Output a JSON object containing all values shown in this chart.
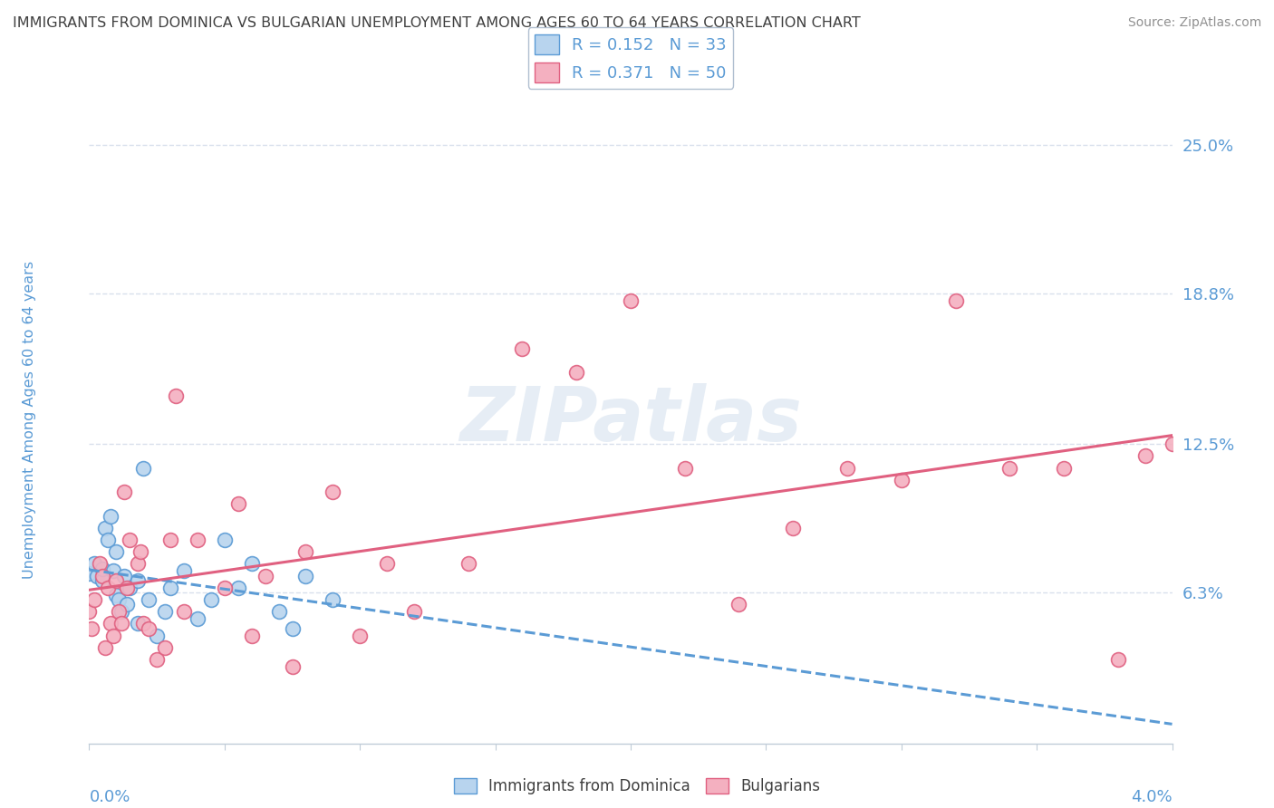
{
  "title": "IMMIGRANTS FROM DOMINICA VS BULGARIAN UNEMPLOYMENT AMONG AGES 60 TO 64 YEARS CORRELATION CHART",
  "source": "Source: ZipAtlas.com",
  "ylabel_axis_label": "Unemployment Among Ages 60 to 64 years",
  "legend_blue_label": "Immigrants from Dominica",
  "legend_pink_label": "Bulgarians",
  "R_blue": 0.152,
  "N_blue": 33,
  "R_pink": 0.371,
  "N_pink": 50,
  "blue_fill": "#b8d4ee",
  "blue_edge": "#5b9bd5",
  "pink_fill": "#f4b0c0",
  "pink_edge": "#e06080",
  "blue_line": "#5b9bd5",
  "pink_line": "#e06080",
  "ylabel_values": [
    6.3,
    12.5,
    18.8,
    25.0
  ],
  "ylabel_labels": [
    "6.3%",
    "12.5%",
    "18.8%",
    "25.0%"
  ],
  "xmin": 0.0,
  "xmax": 4.0,
  "ymin": 0.0,
  "ymax": 27.0,
  "blue_scatter_x": [
    0.0,
    0.02,
    0.03,
    0.05,
    0.05,
    0.06,
    0.07,
    0.08,
    0.09,
    0.1,
    0.1,
    0.11,
    0.12,
    0.13,
    0.14,
    0.15,
    0.18,
    0.18,
    0.2,
    0.22,
    0.25,
    0.28,
    0.3,
    0.35,
    0.4,
    0.45,
    0.5,
    0.55,
    0.6,
    0.7,
    0.75,
    0.8,
    0.9
  ],
  "blue_scatter_y": [
    7.1,
    7.5,
    7.0,
    6.8,
    7.3,
    9.0,
    8.5,
    9.5,
    7.2,
    6.2,
    8.0,
    6.0,
    5.5,
    7.0,
    5.8,
    6.5,
    5.0,
    6.8,
    11.5,
    6.0,
    4.5,
    5.5,
    6.5,
    7.2,
    5.2,
    6.0,
    8.5,
    6.5,
    7.5,
    5.5,
    4.8,
    7.0,
    6.0
  ],
  "pink_scatter_x": [
    0.0,
    0.01,
    0.02,
    0.04,
    0.05,
    0.06,
    0.07,
    0.08,
    0.09,
    0.1,
    0.11,
    0.12,
    0.13,
    0.14,
    0.15,
    0.18,
    0.19,
    0.2,
    0.22,
    0.25,
    0.28,
    0.3,
    0.32,
    0.35,
    0.4,
    0.5,
    0.55,
    0.6,
    0.65,
    0.75,
    0.8,
    0.9,
    1.0,
    1.1,
    1.2,
    1.4,
    1.6,
    1.8,
    2.0,
    2.2,
    2.4,
    2.6,
    2.8,
    3.0,
    3.2,
    3.4,
    3.6,
    3.8,
    3.9,
    4.0
  ],
  "pink_scatter_y": [
    5.5,
    4.8,
    6.0,
    7.5,
    7.0,
    4.0,
    6.5,
    5.0,
    4.5,
    6.8,
    5.5,
    5.0,
    10.5,
    6.5,
    8.5,
    7.5,
    8.0,
    5.0,
    4.8,
    3.5,
    4.0,
    8.5,
    14.5,
    5.5,
    8.5,
    6.5,
    10.0,
    4.5,
    7.0,
    3.2,
    8.0,
    10.5,
    4.5,
    7.5,
    5.5,
    7.5,
    16.5,
    15.5,
    18.5,
    11.5,
    5.8,
    9.0,
    11.5,
    11.0,
    18.5,
    11.5,
    11.5,
    3.5,
    12.0,
    12.5
  ],
  "watermark": "ZIPatlas",
  "background_color": "#ffffff",
  "grid_color": "#d8e0ec",
  "title_color": "#404040",
  "axis_color": "#5b9bd5",
  "source_color": "#909090"
}
